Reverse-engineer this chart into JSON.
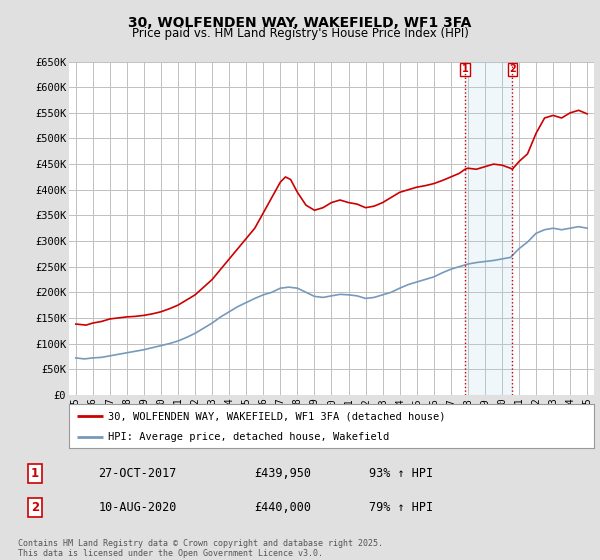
{
  "title": "30, WOLFENDEN WAY, WAKEFIELD, WF1 3FA",
  "subtitle": "Price paid vs. HM Land Registry's House Price Index (HPI)",
  "ylabel_ticks": [
    "£0",
    "£50K",
    "£100K",
    "£150K",
    "£200K",
    "£250K",
    "£300K",
    "£350K",
    "£400K",
    "£450K",
    "£500K",
    "£550K",
    "£600K",
    "£650K"
  ],
  "ylim": [
    0,
    650000
  ],
  "xlim_start": 1994.6,
  "xlim_end": 2025.4,
  "xtick_years": [
    1995,
    1996,
    1997,
    1998,
    1999,
    2000,
    2001,
    2002,
    2003,
    2004,
    2005,
    2006,
    2007,
    2008,
    2009,
    2010,
    2011,
    2012,
    2013,
    2014,
    2015,
    2016,
    2017,
    2018,
    2019,
    2020,
    2021,
    2022,
    2023,
    2024,
    2025
  ],
  "bg_color": "#e0e0e0",
  "plot_bg_color": "#ffffff",
  "grid_color": "#c0c0c0",
  "red_line_color": "#cc0000",
  "blue_line_color": "#7799bb",
  "purchase1_x": 2017.83,
  "purchase2_x": 2020.61,
  "legend_line1": "30, WOLFENDEN WAY, WAKEFIELD, WF1 3FA (detached house)",
  "legend_line2": "HPI: Average price, detached house, Wakefield",
  "annot1_label": "1",
  "annot1_date": "27-OCT-2017",
  "annot1_price": "£439,950",
  "annot1_hpi": "93% ↑ HPI",
  "annot2_label": "2",
  "annot2_date": "10-AUG-2020",
  "annot2_price": "£440,000",
  "annot2_hpi": "79% ↑ HPI",
  "footer": "Contains HM Land Registry data © Crown copyright and database right 2025.\nThis data is licensed under the Open Government Licence v3.0.",
  "red_x": [
    1995.0,
    1995.3,
    1995.6,
    1996.0,
    1996.5,
    1997.0,
    1997.5,
    1998.0,
    1998.5,
    1999.0,
    1999.5,
    2000.0,
    2000.5,
    2001.0,
    2001.5,
    2002.0,
    2002.5,
    2003.0,
    2003.5,
    2004.0,
    2004.5,
    2005.0,
    2005.5,
    2006.0,
    2006.5,
    2007.0,
    2007.3,
    2007.6,
    2008.0,
    2008.5,
    2009.0,
    2009.5,
    2010.0,
    2010.5,
    2011.0,
    2011.5,
    2012.0,
    2012.5,
    2013.0,
    2013.5,
    2014.0,
    2014.5,
    2015.0,
    2015.5,
    2016.0,
    2016.5,
    2017.0,
    2017.5,
    2017.83,
    2018.0,
    2018.5,
    2019.0,
    2019.5,
    2020.0,
    2020.5,
    2020.61,
    2021.0,
    2021.5,
    2022.0,
    2022.5,
    2023.0,
    2023.5,
    2024.0,
    2024.5,
    2025.0
  ],
  "red_y": [
    138000,
    137000,
    136000,
    140000,
    143000,
    148000,
    150000,
    152000,
    153000,
    155000,
    158000,
    162000,
    168000,
    175000,
    185000,
    195000,
    210000,
    225000,
    245000,
    265000,
    285000,
    305000,
    325000,
    355000,
    385000,
    415000,
    425000,
    420000,
    395000,
    370000,
    360000,
    365000,
    375000,
    380000,
    375000,
    372000,
    365000,
    368000,
    375000,
    385000,
    395000,
    400000,
    405000,
    408000,
    412000,
    418000,
    425000,
    432000,
    439950,
    442000,
    440000,
    445000,
    450000,
    448000,
    442000,
    440000,
    455000,
    470000,
    510000,
    540000,
    545000,
    540000,
    550000,
    555000,
    548000
  ],
  "blue_x": [
    1995.0,
    1995.5,
    1996.0,
    1996.5,
    1997.0,
    1997.5,
    1998.0,
    1998.5,
    1999.0,
    1999.5,
    2000.0,
    2000.5,
    2001.0,
    2001.5,
    2002.0,
    2002.5,
    2003.0,
    2003.5,
    2004.0,
    2004.5,
    2005.0,
    2005.5,
    2006.0,
    2006.5,
    2007.0,
    2007.5,
    2008.0,
    2008.5,
    2009.0,
    2009.5,
    2010.0,
    2010.5,
    2011.0,
    2011.5,
    2012.0,
    2012.5,
    2013.0,
    2013.5,
    2014.0,
    2014.5,
    2015.0,
    2015.5,
    2016.0,
    2016.5,
    2017.0,
    2017.5,
    2018.0,
    2018.5,
    2019.0,
    2019.5,
    2020.0,
    2020.5,
    2021.0,
    2021.5,
    2022.0,
    2022.5,
    2023.0,
    2023.5,
    2024.0,
    2024.5,
    2025.0
  ],
  "blue_y": [
    72000,
    70000,
    72000,
    73000,
    76000,
    79000,
    82000,
    85000,
    88000,
    92000,
    96000,
    100000,
    105000,
    112000,
    120000,
    130000,
    140000,
    152000,
    162000,
    172000,
    180000,
    188000,
    195000,
    200000,
    208000,
    210000,
    208000,
    200000,
    192000,
    190000,
    193000,
    196000,
    195000,
    193000,
    188000,
    190000,
    195000,
    200000,
    208000,
    215000,
    220000,
    225000,
    230000,
    238000,
    245000,
    250000,
    255000,
    258000,
    260000,
    262000,
    265000,
    268000,
    285000,
    298000,
    315000,
    322000,
    325000,
    322000,
    325000,
    328000,
    325000
  ]
}
